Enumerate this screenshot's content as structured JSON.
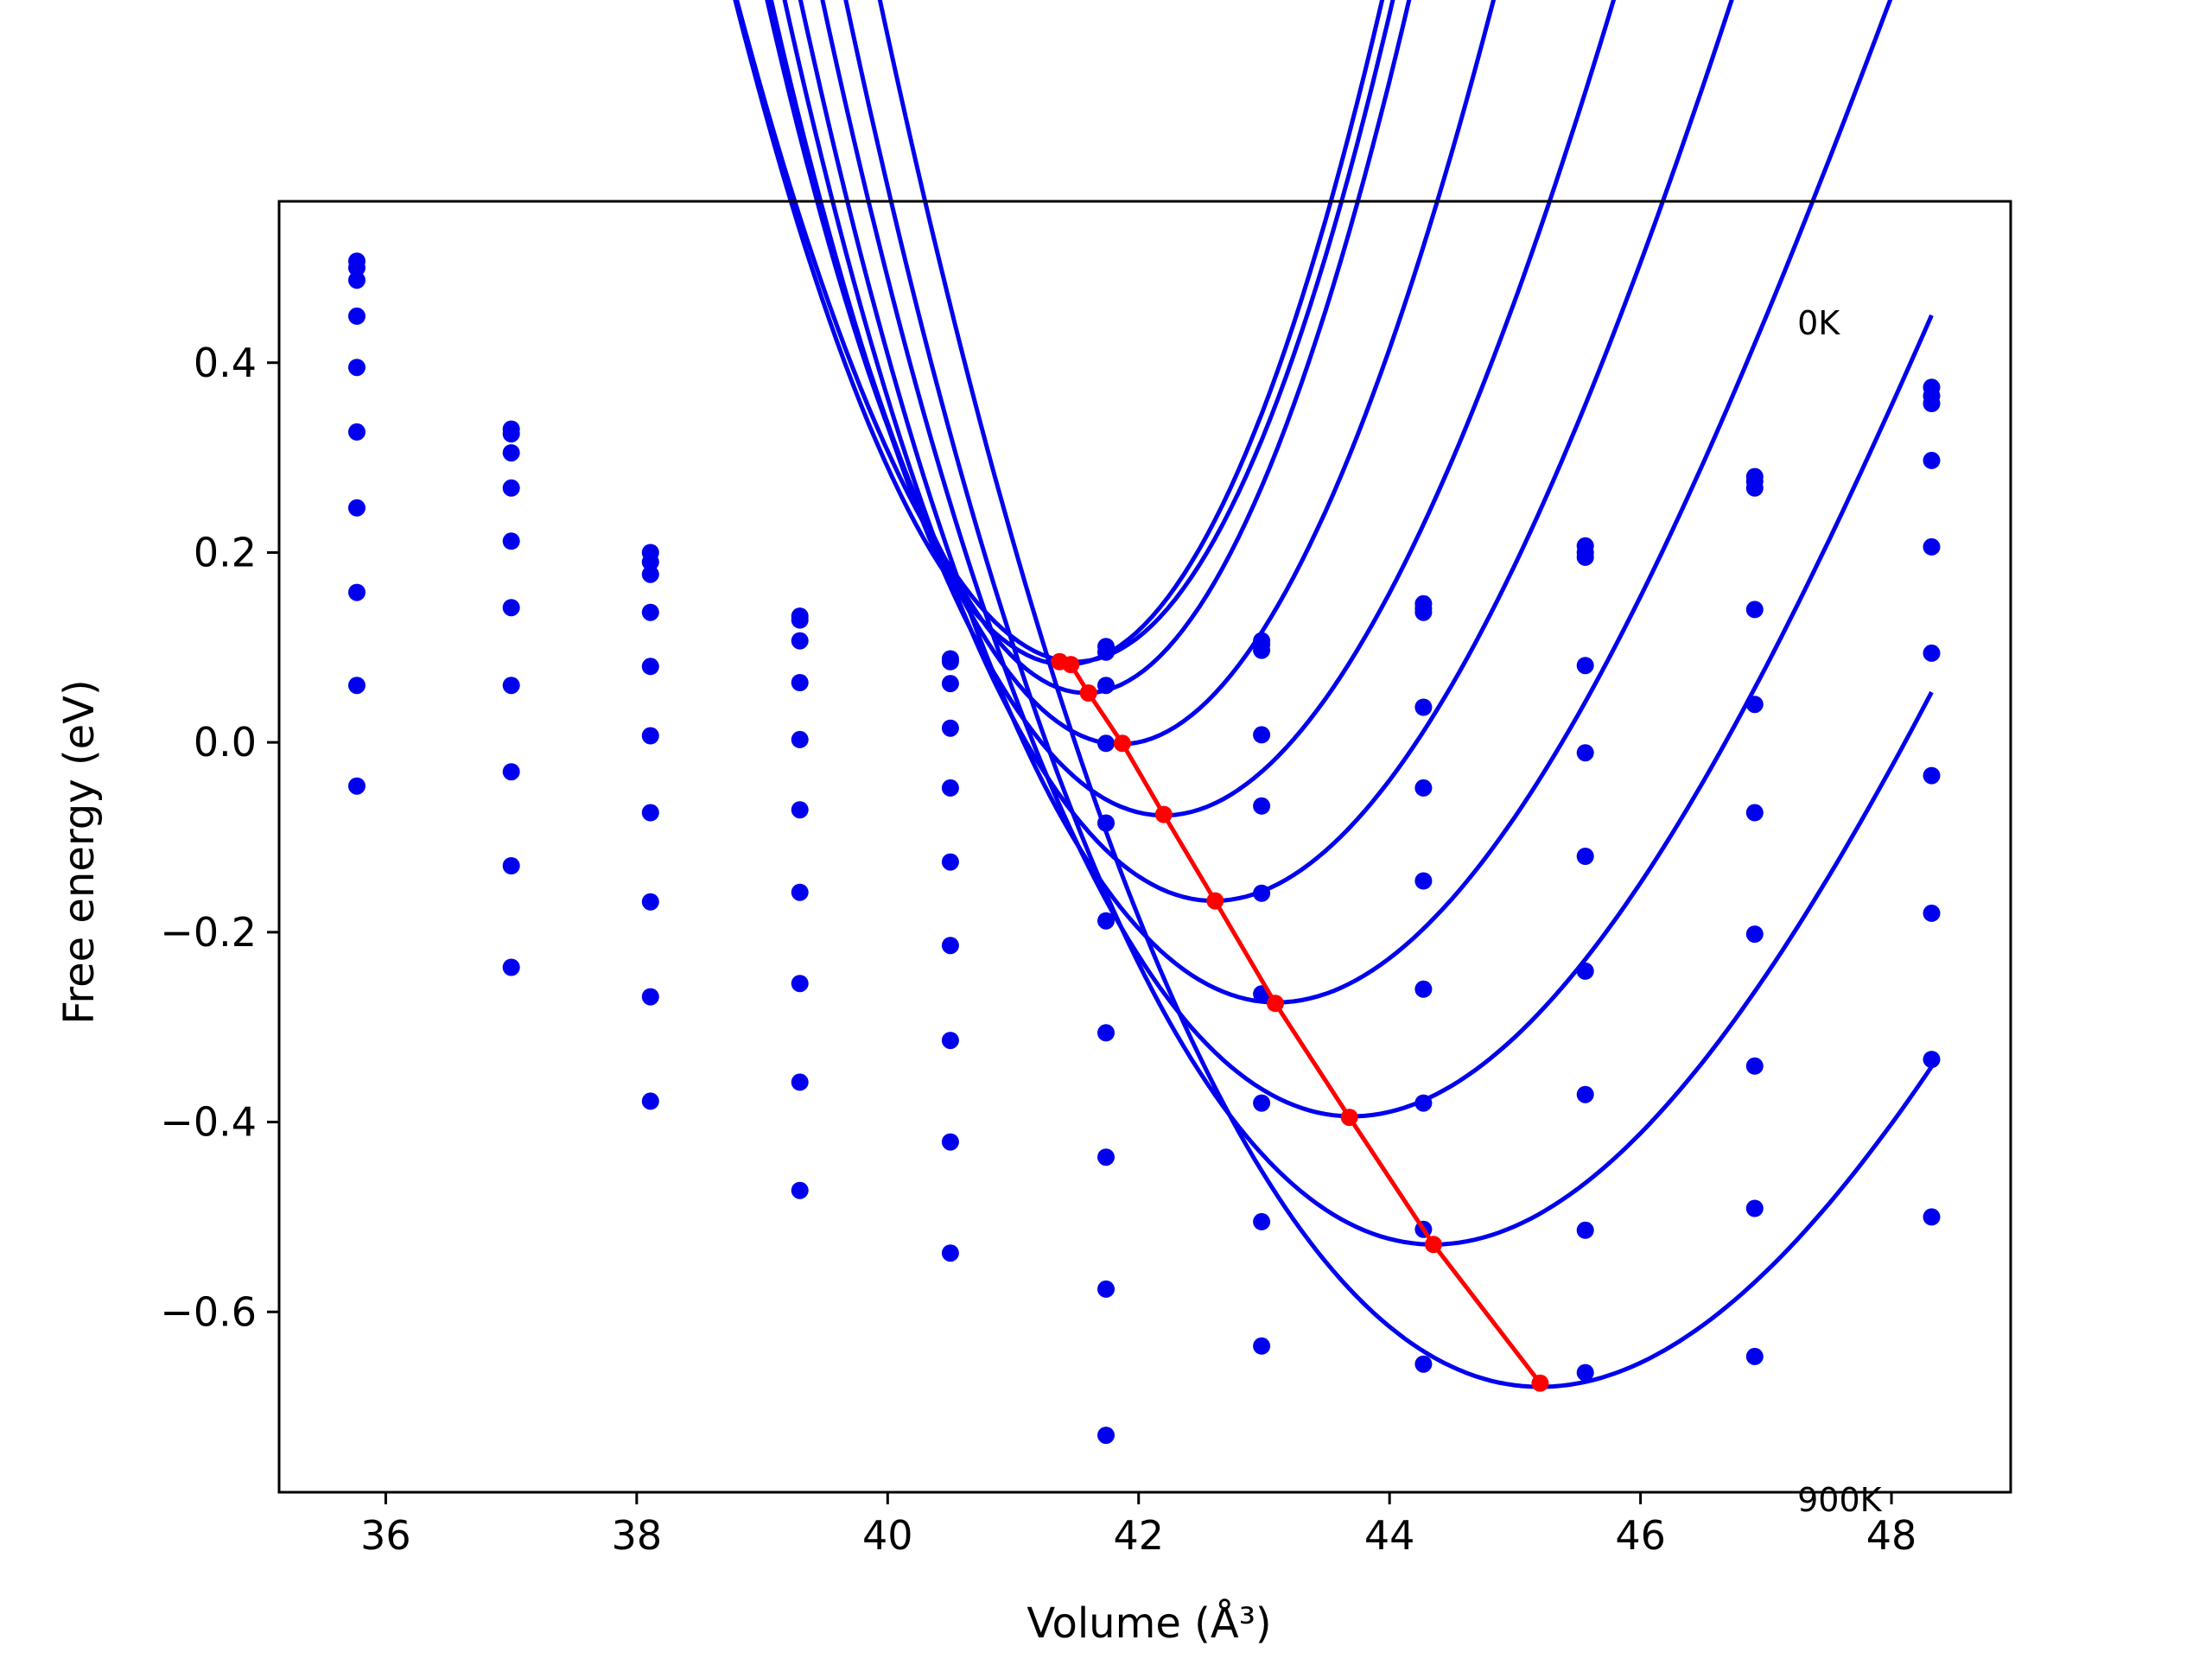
{
  "chart_data": {
    "type": "line",
    "xlabel": "Volume (Å³)",
    "ylabel": "Free energy (eV)",
    "xlim": [
      35.15,
      48.95
    ],
    "ylim": [
      -0.79,
      0.57
    ],
    "xticks": [
      36,
      38,
      40,
      42,
      44,
      46,
      48
    ],
    "yticks": [
      -0.6,
      -0.4,
      -0.2,
      0.0,
      0.2,
      0.4
    ],
    "ytick_labels": [
      "−0.6",
      "−0.4",
      "−0.2",
      "0.0",
      "0.2",
      "0.4"
    ],
    "grid": false,
    "colors": {
      "fit": "#0000ee",
      "points": "#0000ee",
      "minima": "#ff0000",
      "axes": "#000000"
    },
    "annotations": [
      {
        "text": "0K",
        "x": 47.25,
        "y": 0.43
      },
      {
        "text": "900K",
        "x": 47.25,
        "y": -0.81
      }
    ],
    "volumes": [
      35.77,
      37.0,
      38.11,
      39.3,
      40.5,
      41.74,
      42.98,
      44.27,
      45.56,
      46.91,
      48.32
    ],
    "series": [
      {
        "values": [
          0.507,
          0.33,
          0.2,
          0.133,
          0.088,
          0.101,
          0.107,
          0.146,
          0.207,
          0.28,
          0.374
        ],
        "fit": {
          "v0": 41.5,
          "f0": 0.085,
          "a": 0.00855,
          "b": 0.00022
        }
      },
      {
        "values": [
          0.5,
          0.325,
          0.19,
          0.129,
          0.085,
          0.095,
          0.103,
          0.141,
          0.2,
          0.275,
          0.365
        ],
        "fit": {
          "v0": 41.42,
          "f0": 0.082,
          "a": 0.0088,
          "b": 0.00015
        }
      },
      {
        "values": [
          0.487,
          0.305,
          0.177,
          0.107,
          0.062,
          0.06,
          0.097,
          0.137,
          0.195,
          0.268,
          0.357
        ],
        "fit": {
          "v0": 41.58,
          "f0": 0.052,
          "a": 0.0093,
          "b": -5e-05
        }
      },
      {
        "values": [
          0.449,
          0.268,
          0.137,
          0.063,
          0.015,
          -0.001,
          0.008,
          0.037,
          0.081,
          0.14,
          0.297
        ],
        "fit": {
          "v0": 41.85,
          "f0": -0.002,
          "a": 0.0079,
          "b": -0.00018
        }
      },
      {
        "values": [
          0.395,
          0.212,
          0.08,
          0.003,
          -0.048,
          -0.085,
          -0.067,
          -0.048,
          -0.011,
          0.04,
          0.206
        ],
        "fit": {
          "v0": 42.2,
          "f0": -0.077,
          "a": 0.0065,
          "b": -0.00026
        }
      },
      {
        "values": [
          0.327,
          0.142,
          0.007,
          -0.071,
          -0.126,
          -0.188,
          -0.159,
          -0.146,
          -0.12,
          -0.074,
          0.094
        ],
        "fit": {
          "v0": 42.6,
          "f0": -0.167,
          "a": 0.0058,
          "b": -0.00028
        }
      },
      {
        "values": [
          0.247,
          0.06,
          -0.074,
          -0.158,
          -0.214,
          -0.306,
          -0.265,
          -0.26,
          -0.241,
          -0.202,
          -0.035
        ],
        "fit": {
          "v0": 43.1,
          "f0": -0.274,
          "a": 0.00505,
          "b": -0.00028
        }
      },
      {
        "values": [
          0.158,
          -0.031,
          -0.168,
          -0.254,
          -0.314,
          -0.437,
          -0.38,
          -0.38,
          -0.371,
          -0.341,
          -0.18
        ],
        "fit": {
          "v0": 43.7,
          "f0": -0.394,
          "a": 0.00445,
          "b": -0.00025
        }
      },
      {
        "values": [
          0.06,
          -0.13,
          -0.268,
          -0.358,
          -0.421,
          -0.576,
          -0.505,
          -0.513,
          -0.514,
          -0.491,
          -0.334
        ],
        "fit": {
          "v0": 44.35,
          "f0": -0.529,
          "a": 0.00395,
          "b": -0.00022
        }
      },
      {
        "values": [
          -0.046,
          -0.237,
          -0.378,
          -0.472,
          -0.538,
          -0.73,
          -0.636,
          -0.655,
          -0.664,
          -0.647,
          -0.5
        ],
        "fit": {
          "v0": 45.2,
          "f0": -0.679,
          "a": 0.00345,
          "b": -0.00018
        }
      }
    ],
    "minima_line": {
      "x": [
        41.37,
        41.46,
        41.6,
        41.87,
        42.2,
        42.61,
        43.09,
        43.68,
        44.35,
        45.2
      ],
      "y": [
        0.085,
        0.082,
        0.052,
        -0.001,
        -0.076,
        -0.167,
        -0.275,
        -0.395,
        -0.529,
        -0.675
      ]
    }
  }
}
